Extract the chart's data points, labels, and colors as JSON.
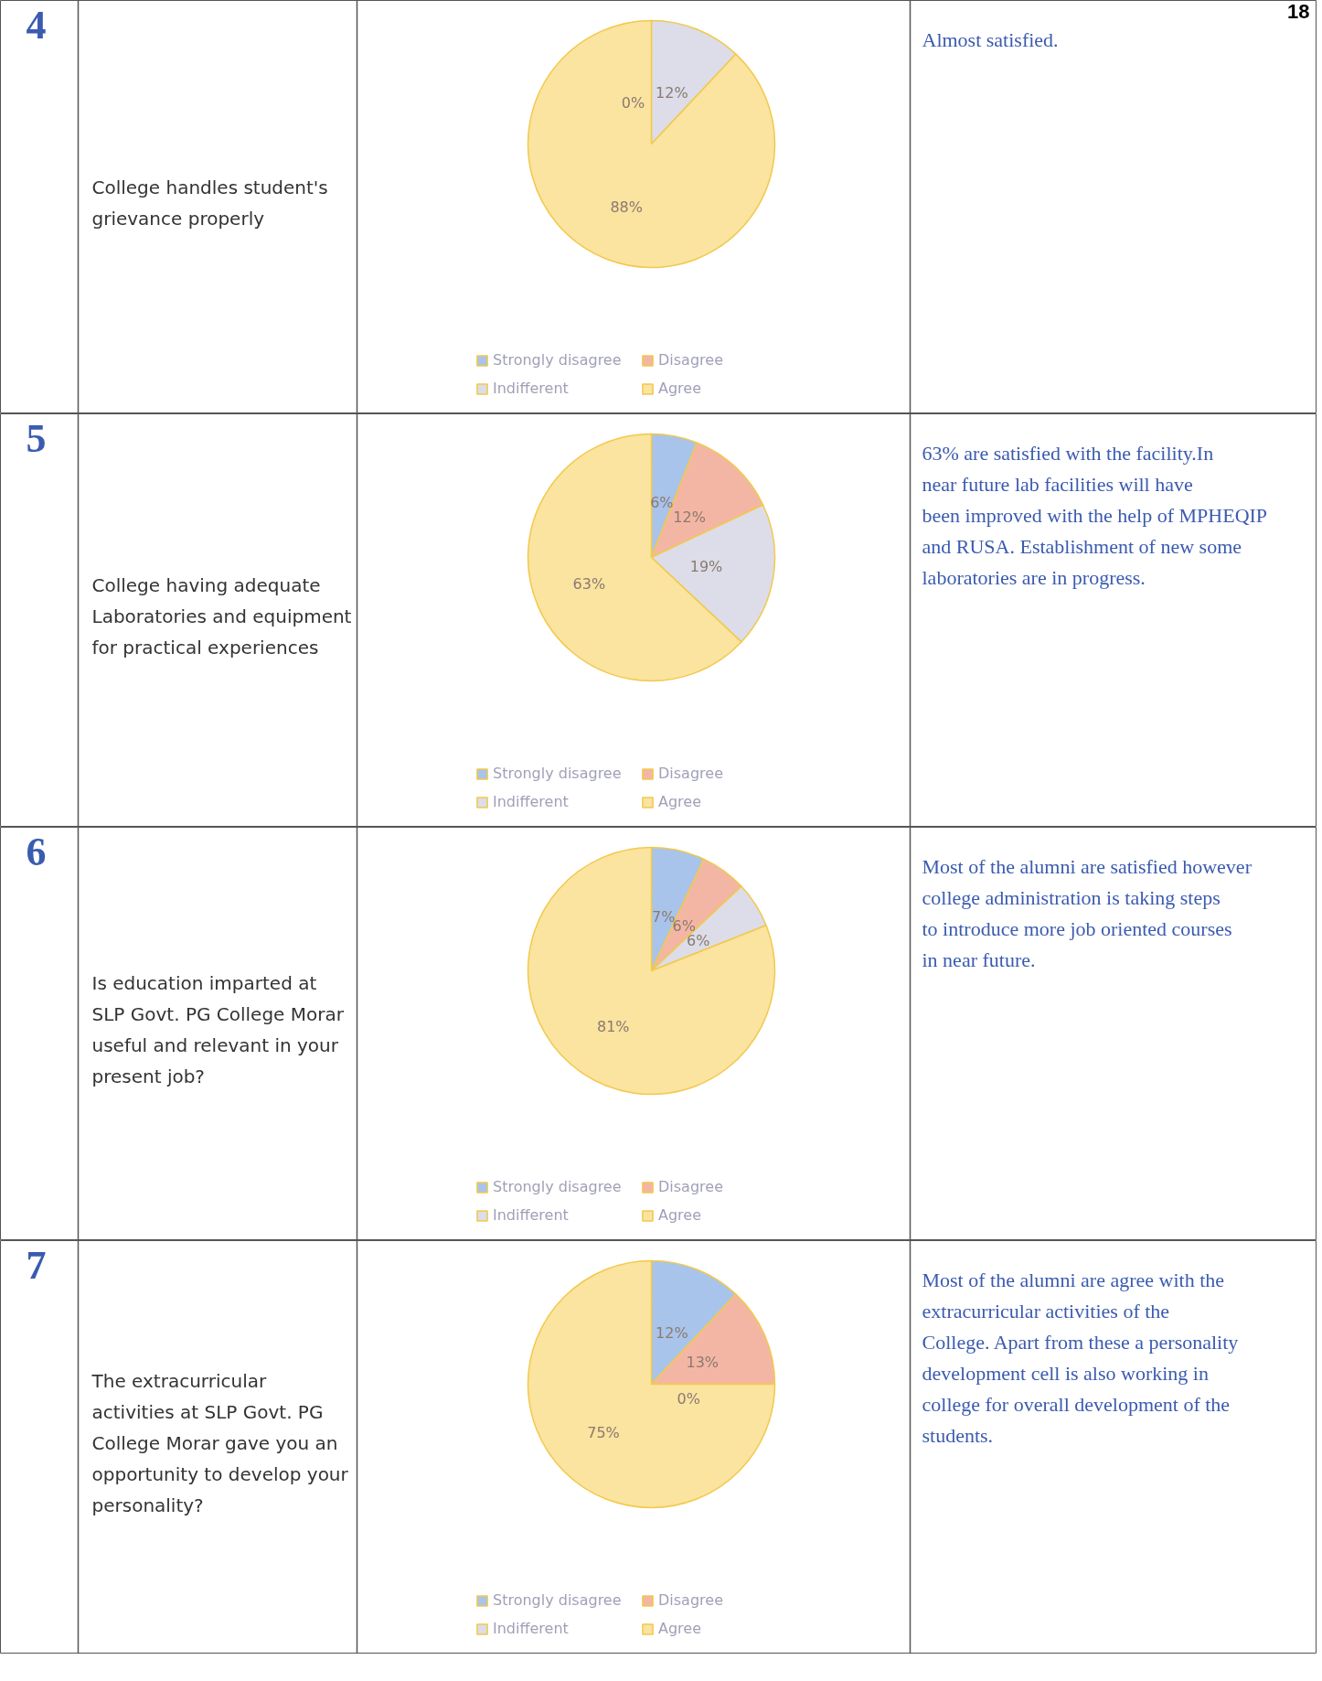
{
  "chart_data": [
    {
      "type": "pie",
      "title": "College handles student's grievance properly",
      "categories": [
        "Strongly disagree",
        "Disagree",
        "Indifferent",
        "Agree"
      ],
      "values": [
        0,
        0,
        12,
        88
      ],
      "colors": [
        "#a9c4eb",
        "#f4b6a4",
        "#dcdde8",
        "#fbe3a0"
      ],
      "value_labels": [
        null,
        "0%",
        "12%",
        "88%"
      ],
      "legend": "bottom",
      "annotations": [
        "18",
        "4",
        "Almost satisfied."
      ]
    },
    {
      "type": "pie",
      "title": "College having adequate Laboratories and equipment for practical experiences",
      "categories": [
        "Strongly disagree",
        "Disagree",
        "Indifferent",
        "Agree"
      ],
      "values": [
        6,
        12,
        19,
        63
      ],
      "colors": [
        "#a9c4eb",
        "#f4b6a4",
        "#dcdde8",
        "#fbe3a0"
      ],
      "value_labels": [
        "6%",
        "12%",
        "19%",
        "63%"
      ],
      "legend": "bottom",
      "annotations": [
        "5",
        "63% are satisfied with the facility.In near future lab facilities will have been improved with the help of MPHEQIP and RUSA. Establishment of  new some laboratories are in progress."
      ]
    },
    {
      "type": "pie",
      "title": "Is education imparted at SLP Govt. PG College  Morar useful and relevant in your present job?",
      "categories": [
        "Strongly disagree",
        "Disagree",
        "Indifferent",
        "Agree"
      ],
      "values": [
        7,
        6,
        6,
        81
      ],
      "colors": [
        "#a9c4eb",
        "#f4b6a4",
        "#dcdde8",
        "#fbe3a0"
      ],
      "value_labels": [
        "7%",
        "6%",
        "6%",
        "81%"
      ],
      "legend": "bottom",
      "annotations": [
        "6",
        "Most of the alumni are satisfied however college administration is taking steps to introduce more job oriented courses in near future."
      ]
    },
    {
      "type": "pie",
      "title": "The extracurricular activities at SLP Govt. PG College Morar gave you an opportunity to develop your personality?",
      "categories": [
        "Strongly disagree",
        "Disagree",
        "Indifferent",
        "Agree"
      ],
      "values": [
        12,
        13,
        0,
        75
      ],
      "colors": [
        "#a9c4eb",
        "#f4b6a4",
        "#dcdde8",
        "#fbe3a0"
      ],
      "value_labels": [
        "12%",
        "13%",
        "0%",
        "75%"
      ],
      "legend": "bottom",
      "annotations": [
        "7",
        "Most of the alumni are agree with the extracurricular activities of the College. Apart from these a personality development cell is also working in college for overall development of the students."
      ]
    }
  ]
}
